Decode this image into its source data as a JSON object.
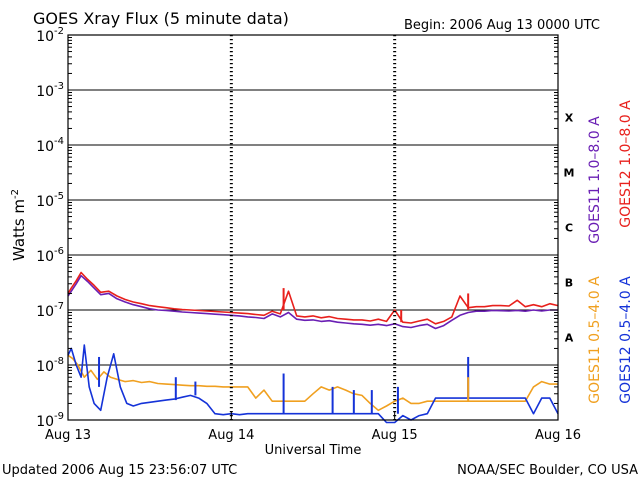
{
  "chart_data": {
    "type": "line",
    "title": "GOES Xray Flux (5 minute data)",
    "begin_label": "Begin:  2006 Aug 13 0000 UTC",
    "xlabel": "Universal Time",
    "ylabel_main": "Watts m",
    "ylabel_exp": "-2",
    "x_unit": "days since 2006 Aug 13 0000 UTC",
    "xlim": [
      0,
      3
    ],
    "x_ticks": [
      {
        "x": 0,
        "label": "Aug 13"
      },
      {
        "x": 1,
        "label": "Aug 14"
      },
      {
        "x": 2,
        "label": "Aug 15"
      },
      {
        "x": 3,
        "label": "Aug 16"
      }
    ],
    "y_scale": "log",
    "ylim": [
      1e-09,
      0.01
    ],
    "y_ticks": [
      {
        "exp": -9,
        "base": "10",
        "sup": "-9"
      },
      {
        "exp": -8,
        "base": "10",
        "sup": "-8"
      },
      {
        "exp": -7,
        "base": "10",
        "sup": "-7"
      },
      {
        "exp": -6,
        "base": "10",
        "sup": "-6"
      },
      {
        "exp": -5,
        "base": "10",
        "sup": "-5"
      },
      {
        "exp": -4,
        "base": "10",
        "sup": "-4"
      },
      {
        "exp": -3,
        "base": "10",
        "sup": "-3"
      },
      {
        "exp": -2,
        "base": "10",
        "sup": "-2"
      }
    ],
    "flare_classes": [
      {
        "label": "A",
        "exp": -7.5
      },
      {
        "label": "B",
        "exp": -6.5
      },
      {
        "label": "C",
        "exp": -5.5
      },
      {
        "label": "M",
        "exp": -4.5
      },
      {
        "label": "X",
        "exp": -3.5
      }
    ],
    "grid": "horizontal lines at each decade from 1e-8 to 1e-3",
    "legend_right": [
      {
        "text": "GOES11 1.0–8.0 A",
        "color": "#6a1fb4"
      },
      {
        "text": "GOES12 1.0–8.0 A",
        "color": "#e8201c"
      },
      {
        "text": "GOES11 0.5–4.0 A",
        "color": "#f0a020"
      },
      {
        "text": "GOES12 0.5–4.0 A",
        "color": "#1533d8"
      }
    ],
    "series": [
      {
        "name": "GOES11 1.0–8.0 A",
        "color": "#6a1fb4",
        "x": [
          0,
          0.02,
          0.05,
          0.08,
          0.12,
          0.16,
          0.2,
          0.25,
          0.3,
          0.35,
          0.4,
          0.45,
          0.5,
          0.55,
          0.6,
          0.65,
          0.7,
          0.75,
          0.8,
          0.85,
          0.9,
          0.95,
          1.0,
          1.05,
          1.1,
          1.15,
          1.2,
          1.25,
          1.3,
          1.35,
          1.4,
          1.45,
          1.5,
          1.55,
          1.6,
          1.65,
          1.7,
          1.75,
          1.8,
          1.85,
          1.9,
          1.95,
          2.0,
          2.05,
          2.1,
          2.15,
          2.2,
          2.25,
          2.3,
          2.35,
          2.4,
          2.45,
          2.5,
          2.55,
          2.6,
          2.65,
          2.7,
          2.75,
          2.8,
          2.85,
          2.9,
          2.95,
          3.0
        ],
        "y": [
          1.8e-07,
          2.2e-07,
          3e-07,
          4.2e-07,
          3.3e-07,
          2.5e-07,
          1.9e-07,
          2e-07,
          1.6e-07,
          1.4e-07,
          1.25e-07,
          1.15e-07,
          1.05e-07,
          1e-07,
          9.8e-08,
          9.5e-08,
          9.2e-08,
          9e-08,
          8.8e-08,
          8.6e-08,
          8.4e-08,
          8.2e-08,
          8e-08,
          7.8e-08,
          7.5e-08,
          7.3e-08,
          7e-08,
          8.5e-08,
          7.5e-08,
          9e-08,
          6.8e-08,
          6.5e-08,
          6.6e-08,
          6.2e-08,
          6.4e-08,
          6e-08,
          5.8e-08,
          5.6e-08,
          5.5e-08,
          5.3e-08,
          5.5e-08,
          5.2e-08,
          5.6e-08,
          5e-08,
          4.8e-08,
          5.2e-08,
          5.5e-08,
          4.6e-08,
          5.2e-08,
          6.5e-08,
          8e-08,
          9e-08,
          9.5e-08,
          9.5e-08,
          9.8e-08,
          9.7e-08,
          9.6e-08,
          9.8e-08,
          9.5e-08,
          1e-07,
          9.6e-08,
          1e-07,
          1e-07
        ]
      },
      {
        "name": "GOES12 1.0–8.0 A",
        "color": "#e8201c",
        "x": [
          0,
          0.02,
          0.05,
          0.08,
          0.12,
          0.16,
          0.2,
          0.25,
          0.3,
          0.35,
          0.4,
          0.45,
          0.5,
          0.55,
          0.6,
          0.65,
          0.7,
          0.75,
          0.8,
          0.85,
          0.9,
          0.95,
          1.0,
          1.05,
          1.1,
          1.15,
          1.2,
          1.25,
          1.3,
          1.35,
          1.4,
          1.45,
          1.5,
          1.55,
          1.6,
          1.65,
          1.7,
          1.75,
          1.8,
          1.85,
          1.9,
          1.95,
          2.0,
          2.05,
          2.1,
          2.15,
          2.2,
          2.25,
          2.3,
          2.35,
          2.4,
          2.45,
          2.5,
          2.55,
          2.6,
          2.65,
          2.7,
          2.75,
          2.8,
          2.85,
          2.9,
          2.95,
          3.0
        ],
        "y": [
          2e-07,
          2.5e-07,
          3.4e-07,
          4.8e-07,
          3.6e-07,
          2.8e-07,
          2.1e-07,
          2.2e-07,
          1.8e-07,
          1.55e-07,
          1.4e-07,
          1.3e-07,
          1.2e-07,
          1.15e-07,
          1.1e-07,
          1.05e-07,
          1.02e-07,
          1e-07,
          9.8e-08,
          9.6e-08,
          9.4e-08,
          9.2e-08,
          9e-08,
          8.8e-08,
          8.6e-08,
          8.3e-08,
          8e-08,
          9.5e-08,
          8.5e-08,
          2.2e-07,
          7.8e-08,
          7.5e-08,
          7.8e-08,
          7.2e-08,
          7.6e-08,
          7e-08,
          6.8e-08,
          6.6e-08,
          6.6e-08,
          6.3e-08,
          6.8e-08,
          6.2e-08,
          1e-07,
          6e-08,
          5.8e-08,
          6.3e-08,
          6.8e-08,
          5.6e-08,
          6.2e-08,
          7.5e-08,
          1.8e-07,
          1.1e-07,
          1.15e-07,
          1.15e-07,
          1.2e-07,
          1.2e-07,
          1.18e-07,
          1.5e-07,
          1.15e-07,
          1.25e-07,
          1.15e-07,
          1.3e-07,
          1.2e-07
        ]
      },
      {
        "name": "GOES11 0.5–4.0 A",
        "color": "#f0a020",
        "x": [
          0,
          0.03,
          0.06,
          0.1,
          0.14,
          0.18,
          0.22,
          0.26,
          0.3,
          0.35,
          0.4,
          0.45,
          0.5,
          0.55,
          0.6,
          0.65,
          0.7,
          0.75,
          0.8,
          0.85,
          0.9,
          0.95,
          1.0,
          1.05,
          1.1,
          1.15,
          1.2,
          1.25,
          1.3,
          1.35,
          1.4,
          1.45,
          1.5,
          1.55,
          1.6,
          1.65,
          1.7,
          1.75,
          1.8,
          1.85,
          1.9,
          1.95,
          2.0,
          2.05,
          2.1,
          2.15,
          2.2,
          2.25,
          2.3,
          2.35,
          2.4,
          2.45,
          2.5,
          2.55,
          2.6,
          2.65,
          2.7,
          2.75,
          2.8,
          2.85,
          2.9,
          2.95,
          3.0
        ],
        "y": [
          1.5e-08,
          1.3e-08,
          1e-08,
          6e-09,
          8e-09,
          5.5e-09,
          7.5e-09,
          6e-09,
          5.5e-09,
          5e-09,
          5.2e-09,
          4.8e-09,
          5e-09,
          4.6e-09,
          4.5e-09,
          4.4e-09,
          4.3e-09,
          4.2e-09,
          4.2e-09,
          4.1e-09,
          4.1e-09,
          4e-09,
          4e-09,
          4e-09,
          4e-09,
          2.5e-09,
          3.5e-09,
          2.2e-09,
          2.2e-09,
          2.2e-09,
          2.2e-09,
          2.2e-09,
          3e-09,
          4e-09,
          3.5e-09,
          4e-09,
          3.5e-09,
          3e-09,
          2.8e-09,
          2e-09,
          1.5e-09,
          1.8e-09,
          2.2e-09,
          2.5e-09,
          2e-09,
          2e-09,
          2.2e-09,
          2.2e-09,
          2.2e-09,
          2.2e-09,
          2.2e-09,
          2.2e-09,
          2.2e-09,
          2.2e-09,
          2.2e-09,
          2.2e-09,
          2.2e-09,
          2.2e-09,
          2.2e-09,
          4e-09,
          5e-09,
          4.5e-09,
          4.5e-09
        ]
      },
      {
        "name": "GOES12 0.5–4.0 A",
        "color": "#1533d8",
        "x": [
          0,
          0.02,
          0.05,
          0.08,
          0.1,
          0.13,
          0.16,
          0.2,
          0.24,
          0.28,
          0.32,
          0.36,
          0.4,
          0.45,
          0.5,
          0.55,
          0.6,
          0.65,
          0.7,
          0.75,
          0.8,
          0.85,
          0.9,
          0.95,
          1.0,
          1.05,
          1.1,
          1.15,
          1.2,
          1.25,
          1.3,
          1.35,
          1.4,
          1.45,
          1.5,
          1.55,
          1.6,
          1.65,
          1.7,
          1.75,
          1.8,
          1.85,
          1.9,
          1.95,
          2.0,
          2.05,
          2.1,
          2.15,
          2.2,
          2.25,
          2.3,
          2.35,
          2.4,
          2.45,
          2.5,
          2.55,
          2.6,
          2.65,
          2.7,
          2.75,
          2.8,
          2.85,
          2.9,
          2.95,
          3.0
        ],
        "y": [
          1.5e-08,
          2e-08,
          1e-08,
          6e-09,
          2.3e-08,
          4e-09,
          2e-09,
          1.5e-09,
          6e-09,
          1.6e-08,
          4e-09,
          2e-09,
          1.8e-09,
          2e-09,
          2.1e-09,
          2.2e-09,
          2.3e-09,
          2.4e-09,
          2.6e-09,
          2.8e-09,
          2.5e-09,
          2e-09,
          1.3e-09,
          1.25e-09,
          1.3e-09,
          1.25e-09,
          1.3e-09,
          1.3e-09,
          1.3e-09,
          1.3e-09,
          1.3e-09,
          1.3e-09,
          1.3e-09,
          1.3e-09,
          1.3e-09,
          1.3e-09,
          1.3e-09,
          1.3e-09,
          1.3e-09,
          1.3e-09,
          1.3e-09,
          1.3e-09,
          1.3e-09,
          9e-10,
          9e-10,
          1.2e-09,
          1e-09,
          1.2e-09,
          1.3e-09,
          2.5e-09,
          2.5e-09,
          2.5e-09,
          2.5e-09,
          2.5e-09,
          2.5e-09,
          2.5e-09,
          2.5e-09,
          2.5e-09,
          2.5e-09,
          2.5e-09,
          2.5e-09,
          1.3e-09,
          2.5e-09,
          2.5e-09,
          1.3e-09
        ]
      }
    ],
    "spikes": [
      {
        "series": "GOES12 1.0–8.0 A",
        "x": 1.32,
        "y0": 1e-07,
        "y1": 2.5e-07,
        "color": "#e8201c"
      },
      {
        "series": "GOES12 1.0–8.0 A",
        "x": 2.04,
        "y0": 6e-08,
        "y1": 1e-07,
        "color": "#e8201c"
      },
      {
        "series": "GOES12 1.0–8.0 A",
        "x": 2.45,
        "y0": 1e-07,
        "y1": 2e-07,
        "color": "#e8201c"
      },
      {
        "series": "GOES12 0.5–4.0 A",
        "x": 0.19,
        "y0": 4e-09,
        "y1": 1.4e-08,
        "color": "#1533d8"
      },
      {
        "series": "GOES12 0.5–4.0 A",
        "x": 0.66,
        "y0": 2.3e-09,
        "y1": 6e-09,
        "color": "#1533d8"
      },
      {
        "series": "GOES12 0.5–4.0 A",
        "x": 0.78,
        "y0": 2.8e-09,
        "y1": 5e-09,
        "color": "#1533d8"
      },
      {
        "series": "GOES12 0.5–4.0 A",
        "x": 1.32,
        "y0": 1.3e-09,
        "y1": 7e-09,
        "color": "#1533d8"
      },
      {
        "series": "GOES12 0.5–4.0 A",
        "x": 1.62,
        "y0": 1.3e-09,
        "y1": 4e-09,
        "color": "#1533d8"
      },
      {
        "series": "GOES12 0.5–4.0 A",
        "x": 1.75,
        "y0": 1.3e-09,
        "y1": 3.5e-09,
        "color": "#1533d8"
      },
      {
        "series": "GOES12 0.5–4.0 A",
        "x": 1.86,
        "y0": 1.3e-09,
        "y1": 3.5e-09,
        "color": "#1533d8"
      },
      {
        "series": "GOES12 0.5–4.0 A",
        "x": 2.02,
        "y0": 1.3e-09,
        "y1": 4e-09,
        "color": "#1533d8"
      },
      {
        "series": "GOES12 0.5–4.0 A",
        "x": 2.45,
        "y0": 2.5e-09,
        "y1": 1.4e-08,
        "color": "#1533d8"
      },
      {
        "series": "GOES11 0.5–4.0 A",
        "x": 2.45,
        "y0": 2.2e-09,
        "y1": 6e-09,
        "color": "#f0a020"
      }
    ]
  },
  "footer": {
    "updated": "Updated 2006 Aug 15 23:56:07 UTC",
    "credit": "NOAA/SEC Boulder, CO USA"
  }
}
